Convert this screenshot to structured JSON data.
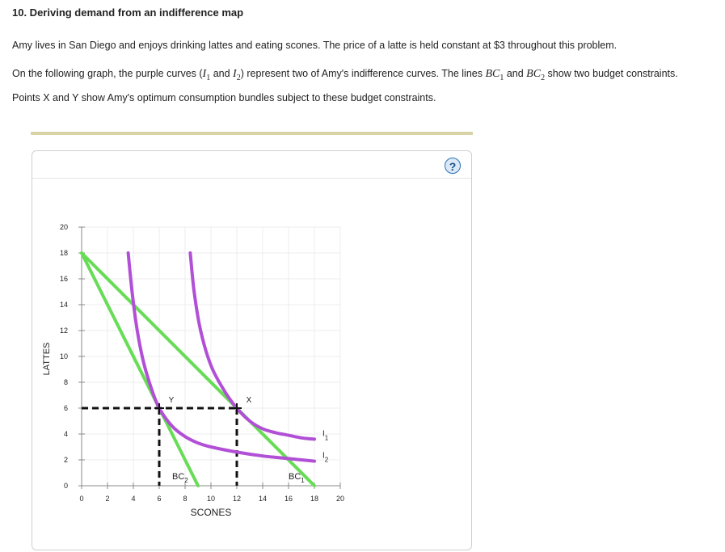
{
  "heading": "10. Deriving demand from an indifference map",
  "intro": "Amy lives in San Diego and enjoys drinking lattes and eating scones. The price of a latte is held constant at $3 throughout this problem.",
  "instructions": {
    "part1": "On the following graph, the purple curves (",
    "i1": "I",
    "i1_sub": "1",
    "and1": " and ",
    "i2": "I",
    "i2_sub": "2",
    "part2": ") represent two of Amy's indifference curves. The lines ",
    "bc1": "BC",
    "bc1_sub": "1",
    "and2": " and ",
    "bc2": "BC",
    "bc2_sub": "2",
    "part3": " show two budget constraints. Points X and Y show Amy's optimum consumption bundles subject to these budget constraints."
  },
  "help_label": "?",
  "colors": {
    "indifference": "#b14fd6",
    "budget": "#66dd55",
    "guide": "#111111",
    "grid": "#ececec",
    "axis": "#888888"
  },
  "chart_data": {
    "type": "line",
    "xlabel": "SCONES",
    "ylabel": "LATTES",
    "xlim": [
      0,
      20
    ],
    "ylim": [
      0,
      20
    ],
    "xticks": [
      0,
      2,
      4,
      6,
      8,
      10,
      12,
      14,
      16,
      18,
      20
    ],
    "yticks": [
      0,
      2,
      4,
      6,
      8,
      10,
      12,
      14,
      16,
      18,
      20
    ],
    "grid": true,
    "budget_lines": [
      {
        "name": "BC",
        "sub": "1",
        "points": [
          [
            0,
            18
          ],
          [
            18,
            0
          ]
        ]
      },
      {
        "name": "BC",
        "sub": "2",
        "points": [
          [
            0,
            18
          ],
          [
            9,
            0
          ]
        ]
      }
    ],
    "indifference_curves": [
      {
        "name": "I",
        "sub": "1",
        "points": [
          [
            8.4,
            18
          ],
          [
            8.7,
            15
          ],
          [
            9.2,
            12
          ],
          [
            10,
            9.3
          ],
          [
            11,
            7.4
          ],
          [
            12,
            6
          ],
          [
            13,
            5
          ],
          [
            14,
            4.4
          ],
          [
            15,
            4.1
          ],
          [
            16,
            3.9
          ],
          [
            17,
            3.7
          ],
          [
            18,
            3.6
          ]
        ]
      },
      {
        "name": "I",
        "sub": "2",
        "points": [
          [
            3.6,
            18
          ],
          [
            3.9,
            15
          ],
          [
            4.3,
            12
          ],
          [
            4.8,
            9.5
          ],
          [
            5.4,
            7.5
          ],
          [
            6,
            6
          ],
          [
            7,
            4.6
          ],
          [
            8,
            3.8
          ],
          [
            9,
            3.3
          ],
          [
            10,
            3
          ],
          [
            12,
            2.6
          ],
          [
            14,
            2.3
          ],
          [
            16,
            2.1
          ],
          [
            18,
            1.9
          ]
        ]
      }
    ],
    "optimum_points": [
      {
        "name": "X",
        "x": 12,
        "y": 6
      },
      {
        "name": "Y",
        "x": 6,
        "y": 6
      }
    ]
  }
}
